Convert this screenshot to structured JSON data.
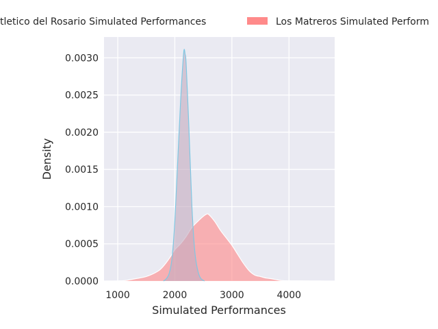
{
  "chart_data": {
    "type": "area",
    "xlabel": "Simulated Performances",
    "ylabel": "Density",
    "xlim": [
      760,
      4800
    ],
    "ylim": [
      0,
      0.00328
    ],
    "x_ticks": [
      1000,
      2000,
      3000,
      4000
    ],
    "y_ticks": [
      0.0,
      0.0005,
      0.001,
      0.0015,
      0.002,
      0.0025,
      0.003
    ],
    "y_tick_labels": [
      "0.0000",
      "0.0005",
      "0.0010",
      "0.0015",
      "0.0020",
      "0.0025",
      "0.0030"
    ],
    "grid": true,
    "legend_position": "top",
    "series": [
      {
        "name": "Atletico del Rosario Simulated Performances",
        "legend_label": "tletico del Rosario Simulated Performances",
        "fill_color": "#c5adc0",
        "edge_color": "#7fc8e3",
        "points": [
          [
            1800,
            0
          ],
          [
            1850,
            3e-05
          ],
          [
            1900,
            0.0001
          ],
          [
            1950,
            0.0003
          ],
          [
            2000,
            0.0008
          ],
          [
            2050,
            0.0016
          ],
          [
            2100,
            0.0024
          ],
          [
            2130,
            0.0028
          ],
          [
            2160,
            0.0031
          ],
          [
            2180,
            0.00305
          ],
          [
            2200,
            0.0029
          ],
          [
            2250,
            0.002
          ],
          [
            2300,
            0.001
          ],
          [
            2350,
            0.0004
          ],
          [
            2400,
            0.00015
          ],
          [
            2450,
            4e-05
          ],
          [
            2520,
            0
          ]
        ]
      },
      {
        "name": "Los Matreros Simulated Performances",
        "legend_label": "Los Matreros Simulated Perform",
        "fill_color": "#ff8a8a",
        "edge_color": "#ffffff",
        "points": [
          [
            800,
            0
          ],
          [
            1100,
            5e-06
          ],
          [
            1300,
            3e-05
          ],
          [
            1500,
            6e-05
          ],
          [
            1700,
            0.00013
          ],
          [
            1800,
            0.0002
          ],
          [
            1900,
            0.0003
          ],
          [
            2000,
            0.00042
          ],
          [
            2100,
            0.0005
          ],
          [
            2200,
            0.0006
          ],
          [
            2300,
            0.00072
          ],
          [
            2400,
            0.0008
          ],
          [
            2500,
            0.00087
          ],
          [
            2560,
            0.0009
          ],
          [
            2600,
            0.00089
          ],
          [
            2700,
            0.0008
          ],
          [
            2800,
            0.00068
          ],
          [
            2900,
            0.00058
          ],
          [
            3000,
            0.00048
          ],
          [
            3100,
            0.00036
          ],
          [
            3200,
            0.00024
          ],
          [
            3300,
            0.00014
          ],
          [
            3400,
            8e-05
          ],
          [
            3500,
            6e-05
          ],
          [
            3600,
            4e-05
          ],
          [
            3700,
            3e-05
          ],
          [
            3800,
            1.5e-05
          ],
          [
            3900,
            5e-06
          ],
          [
            4200,
            2e-06
          ],
          [
            4600,
            0
          ]
        ]
      }
    ]
  }
}
